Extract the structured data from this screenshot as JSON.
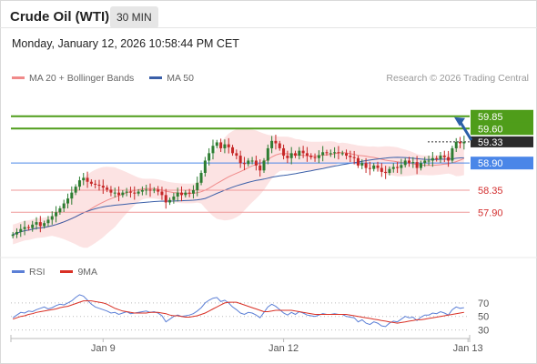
{
  "header": {
    "title": "Crude Oil (WTI)",
    "interval": "30 MIN"
  },
  "timestamp": "Monday, January 12, 2026 10:58:44 PM CET",
  "legend": [
    {
      "label": "MA 20 + Bollinger Bands",
      "color": "#f08a8a"
    },
    {
      "label": "MA 50",
      "color": "#3a5fa8"
    }
  ],
  "credit": "Research © 2026 Trading Central",
  "colors": {
    "resistance": "#4f9d1a",
    "support": "#ef9a9a",
    "pivot": "#4a86e8",
    "bull": "#2e7d32",
    "bear": "#c62828",
    "band": "#f9cccc",
    "ma20": "#f08a8a",
    "ma50": "#3a5fa8",
    "rsi": "#5b7fd6",
    "rsi_ma": "#d93025",
    "arrow": "#2b5fa8"
  },
  "chart_data": [
    {
      "type": "candlestick",
      "instrument": "Crude Oil (WTI)",
      "interval": "30 MIN",
      "xlabels": [
        {
          "label": "Jan 9",
          "index": 23
        },
        {
          "label": "Jan 12",
          "index": 69
        },
        {
          "label": "Jan 13",
          "index": 116
        }
      ],
      "ylim": [
        57.0,
        60.4
      ],
      "close": [
        57.45,
        57.5,
        57.56,
        57.6,
        57.58,
        57.65,
        57.7,
        57.62,
        57.68,
        57.75,
        57.82,
        57.9,
        57.98,
        58.08,
        58.18,
        58.3,
        58.42,
        58.55,
        58.6,
        58.52,
        58.48,
        58.46,
        58.44,
        58.4,
        58.36,
        58.3,
        58.3,
        58.25,
        58.3,
        58.32,
        58.3,
        58.28,
        58.32,
        58.35,
        58.36,
        58.34,
        58.36,
        58.32,
        58.25,
        58.1,
        58.15,
        58.22,
        58.3,
        58.25,
        58.3,
        58.28,
        58.35,
        58.5,
        58.7,
        58.95,
        59.1,
        59.25,
        59.32,
        59.2,
        59.28,
        59.22,
        59.1,
        59.05,
        58.9,
        58.88,
        58.95,
        58.95,
        58.85,
        58.75,
        58.95,
        59.2,
        59.35,
        59.3,
        59.2,
        59.05,
        59.0,
        59.1,
        59.05,
        59.15,
        59.1,
        59.05,
        59.02,
        59.0,
        59.06,
        59.12,
        59.1,
        59.1,
        59.12,
        59.1,
        59.1,
        59.05,
        59.02,
        59.0,
        58.85,
        58.9,
        58.8,
        58.78,
        58.85,
        58.8,
        58.72,
        58.7,
        58.78,
        58.82,
        58.8,
        58.86,
        58.95,
        58.9,
        58.92,
        58.8,
        58.9,
        58.95,
        58.95,
        59.0,
        58.98,
        59.05,
        59.02,
        58.95,
        59.2,
        59.33,
        59.3,
        59.33
      ],
      "levels": [
        {
          "value": 59.85,
          "kind": "resistance"
        },
        {
          "value": 59.6,
          "kind": "resistance"
        },
        {
          "value": 59.33,
          "kind": "last"
        },
        {
          "value": 58.9,
          "kind": "pivot"
        },
        {
          "value": 58.35,
          "kind": "support"
        },
        {
          "value": 57.9,
          "kind": "support"
        }
      ]
    },
    {
      "type": "line",
      "title": "RSI",
      "series": [
        {
          "name": "RSI",
          "values": [
            48,
            52,
            56,
            55,
            58,
            57,
            60,
            62,
            64,
            61,
            63,
            66,
            68,
            67,
            70,
            73,
            78,
            82,
            80,
            74,
            68,
            64,
            62,
            60,
            58,
            55,
            56,
            53,
            55,
            57,
            54,
            55,
            56,
            57,
            58,
            56,
            57,
            55,
            51,
            42,
            46,
            50,
            52,
            50,
            51,
            52,
            54,
            58,
            63,
            70,
            74,
            77,
            78,
            72,
            74,
            70,
            64,
            60,
            55,
            53,
            56,
            55,
            52,
            48,
            56,
            64,
            68,
            65,
            60,
            55,
            52,
            56,
            53,
            57,
            55,
            52,
            51,
            50,
            52,
            54,
            53,
            53,
            54,
            53,
            53,
            50,
            49,
            48,
            42,
            45,
            40,
            38,
            42,
            40,
            36,
            35,
            40,
            43,
            42,
            46,
            50,
            48,
            49,
            44,
            49,
            52,
            52,
            55,
            54,
            57,
            55,
            52,
            60,
            64,
            62,
            63
          ]
        },
        {
          "name": "9MA",
          "values": [
            46,
            48,
            50,
            51,
            53,
            54,
            56,
            57,
            58,
            59,
            60,
            61,
            63,
            64,
            65,
            67,
            69,
            71,
            73,
            73,
            73,
            72,
            71,
            70,
            68,
            65,
            62,
            60,
            58,
            57,
            56,
            55,
            55,
            55,
            55,
            56,
            56,
            56,
            55,
            54,
            52,
            51,
            51,
            50,
            49,
            49,
            50,
            51,
            53,
            55,
            58,
            61,
            64,
            67,
            70,
            71,
            71,
            71,
            69,
            67,
            65,
            63,
            61,
            59,
            57,
            57,
            58,
            59,
            59,
            59,
            59,
            59,
            58,
            57,
            56,
            55,
            54,
            53,
            53,
            53,
            53,
            53,
            53,
            53,
            53,
            53,
            52,
            51,
            50,
            49,
            48,
            47,
            46,
            45,
            44,
            43,
            42,
            41,
            40,
            41,
            42,
            43,
            44,
            45,
            45,
            46,
            47,
            48,
            49,
            50,
            51,
            52,
            53,
            54,
            55,
            56
          ]
        }
      ],
      "ylim": [
        20,
        90
      ],
      "yticks": [
        70,
        50,
        30
      ]
    }
  ],
  "rsi_legend": [
    {
      "label": "RSI",
      "color": "#5b7fd6"
    },
    {
      "label": "9MA",
      "color": "#d93025"
    }
  ]
}
